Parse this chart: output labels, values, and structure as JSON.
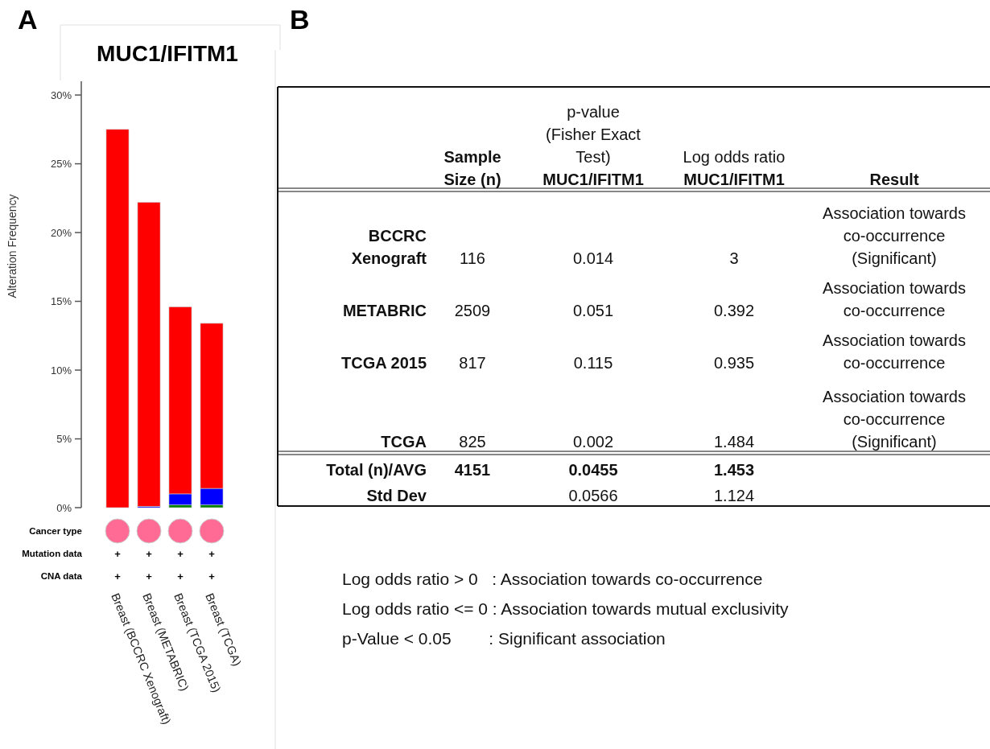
{
  "chart_data": [
    {
      "type": "bar",
      "title": "MUC1/IFITM1",
      "ylabel": "Alteration Frequency",
      "categories": [
        "Breast (BCCRC Xenograft)",
        "Breast (METABRIC)",
        "Breast (TCGA 2015)",
        "Breast (TCGA)"
      ],
      "stacked": true,
      "series": [
        {
          "color": "#008000",
          "values": [
            0,
            0,
            0.2,
            0.2
          ]
        },
        {
          "color": "#0000ff",
          "values": [
            0,
            0.1,
            0.8,
            1.2
          ]
        },
        {
          "color": "#ff0000",
          "values": [
            27.5,
            22.1,
            13.6,
            12.0
          ]
        }
      ],
      "ylim": [
        0,
        31
      ],
      "yticks": [
        {
          "value": 0,
          "label": "0%"
        },
        {
          "value": 5,
          "label": "5%"
        },
        {
          "value": 10,
          "label": "10%"
        },
        {
          "value": 15,
          "label": "15%"
        },
        {
          "value": 20,
          "label": "20%"
        },
        {
          "value": 25,
          "label": "25%"
        },
        {
          "value": 30,
          "label": "30%"
        }
      ],
      "annotations": [
        "A",
        "Cancer type",
        "Mutation data",
        "CNA data",
        "+",
        "+",
        "+",
        "+",
        "+",
        "+",
        "+",
        "+"
      ]
    },
    {
      "type": "other",
      "annotations": [
        "B",
        null,
        "Sample\nSize (n)",
        "p-value\n(Fisher Exact\nTest)\nMUC1/IFITM1",
        "Log odds ratio\nMUC1/IFITM1",
        "Result",
        "BCCRC\nXenograft",
        "116",
        "0.014",
        "3",
        "Association towards\nco-occurrence\n(Significant)",
        "METABRIC",
        "2509",
        "0.051",
        "0.392",
        "Association towards\nco-occurrence",
        "TCGA 2015",
        "817",
        "0.115",
        "0.935",
        "Association towards\nco-occurrence",
        "TCGA",
        "825",
        "0.002",
        "1.484",
        "Association towards\nco-occurrence\n(Significant)",
        "Total (n)/AVG",
        "4151",
        "0.0455",
        "1.453",
        null,
        "Std Dev",
        null,
        "0.0566",
        "1.124",
        null,
        "Log odds ratio > 0   : Association towards co-occurrence",
        "Log odds ratio <= 0 : Association towards mutual exclusivity",
        "p-Value < 0.05        : Significant association"
      ]
    }
  ]
}
